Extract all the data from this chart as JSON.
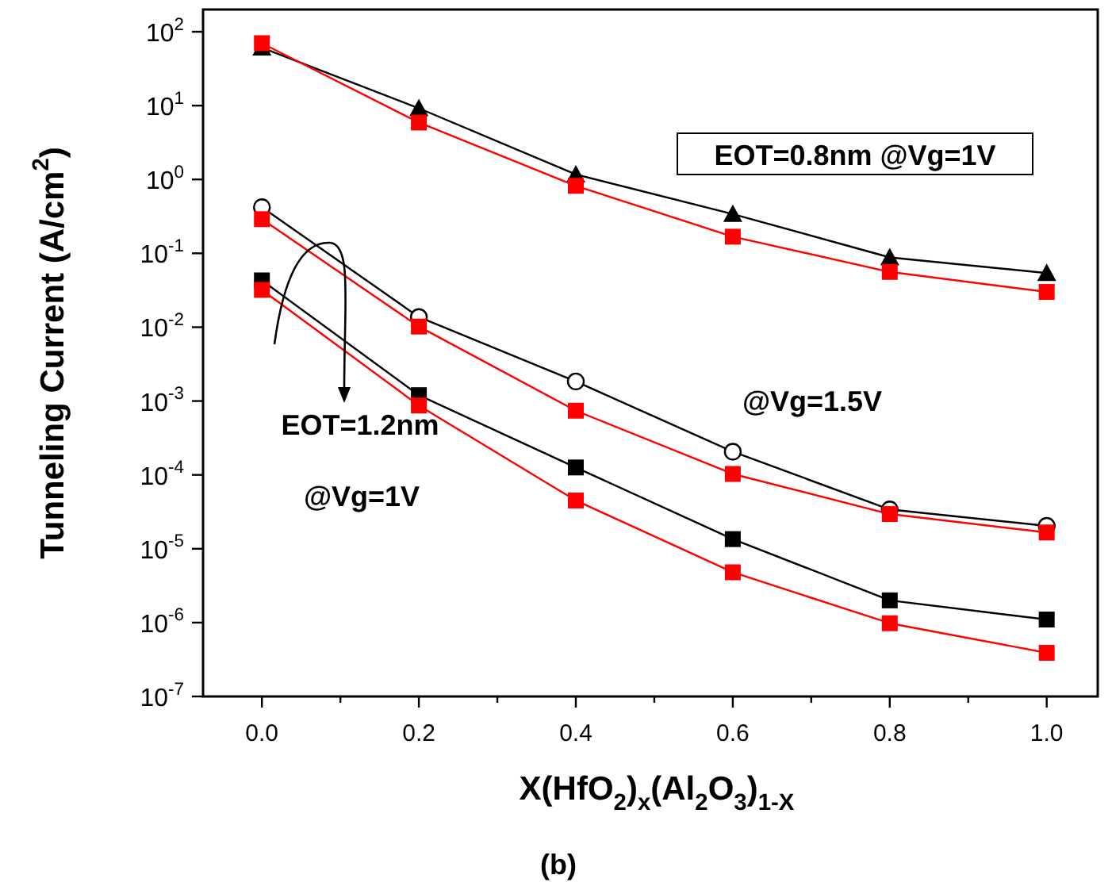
{
  "chart_data": {
    "type": "line",
    "xlabel": "X(HfO$_{2}$)$_{x}$(Al$_{2}$O$_{3}$)$_{1-X}$",
    "ylabel": "Tunneling Current (A/cm$^{2}$)",
    "log": "y",
    "grid": false,
    "line_style": "solid",
    "x": [
      0,
      0.2,
      0.4,
      0.6,
      0.8,
      1.0
    ],
    "xlim": [
      -0.075,
      1.065
    ],
    "xticks": [
      {
        "value": 0,
        "label": "0.0"
      },
      {
        "value": 0.1,
        "label": null
      },
      {
        "value": 0.2,
        "label": "0.2"
      },
      {
        "value": 0.3,
        "label": null
      },
      {
        "value": 0.4,
        "label": "0.4"
      },
      {
        "value": 0.5,
        "label": null
      },
      {
        "value": 0.6,
        "label": "0.6"
      },
      {
        "value": 0.7,
        "label": null
      },
      {
        "value": 0.8,
        "label": "0.8"
      },
      {
        "value": 0.9,
        "label": null
      },
      {
        "value": 1.0,
        "label": "1.0"
      }
    ],
    "ylim": [
      1e-07,
      200
    ],
    "yticks": [
      {
        "value": 1e-07,
        "label": "10$^{-7}$"
      },
      {
        "value": 1e-06,
        "label": "10$^{-6}$"
      },
      {
        "value": 1e-05,
        "label": "10$^{-5}$"
      },
      {
        "value": 0.0001,
        "label": "10$^{-4}$"
      },
      {
        "value": 0.001,
        "label": "10$^{-3}$"
      },
      {
        "value": 0.01,
        "label": "10$^{-2}$"
      },
      {
        "value": 0.1,
        "label": "10$^{-1}$"
      },
      {
        "value": 1,
        "label": "10$^{0}$"
      },
      {
        "value": 10,
        "label": "10$^{1}$"
      },
      {
        "value": 100,
        "label": "10$^{2}$"
      }
    ],
    "series": [
      {
        "color": "#000000",
        "marker": "triangle",
        "values": [
          61,
          9.2,
          1.17,
          0.34,
          0.088,
          0.054
        ]
      },
      {
        "color": "#ff0000",
        "marker": "square",
        "values": [
          70,
          5.9,
          0.82,
          0.168,
          0.056,
          0.03
        ]
      },
      {
        "color": "#000000",
        "marker": "circle",
        "values": [
          0.42,
          0.0137,
          0.00184,
          0.000206,
          3.4e-05,
          2.04e-05
        ]
      },
      {
        "color": "#ff0000",
        "marker": "square",
        "values": [
          0.29,
          0.0102,
          0.00074,
          0.000103,
          2.95e-05,
          1.66e-05
        ]
      },
      {
        "color": "#000000",
        "marker": "square",
        "values": [
          0.043,
          0.0012,
          0.000126,
          1.35e-05,
          2e-06,
          1.1e-06
        ]
      },
      {
        "color": "#ff0000",
        "marker": "square",
        "values": [
          0.032,
          0.00087,
          4.5e-05,
          4.8e-06,
          9.8e-07,
          3.9e-07
        ]
      }
    ],
    "annotations": [
      "EOT=0.8nm @Vg=1V",
      "@Vg=1.5V",
      "EOT=1.2nm",
      "@Vg=1V",
      "(b)"
    ]
  }
}
